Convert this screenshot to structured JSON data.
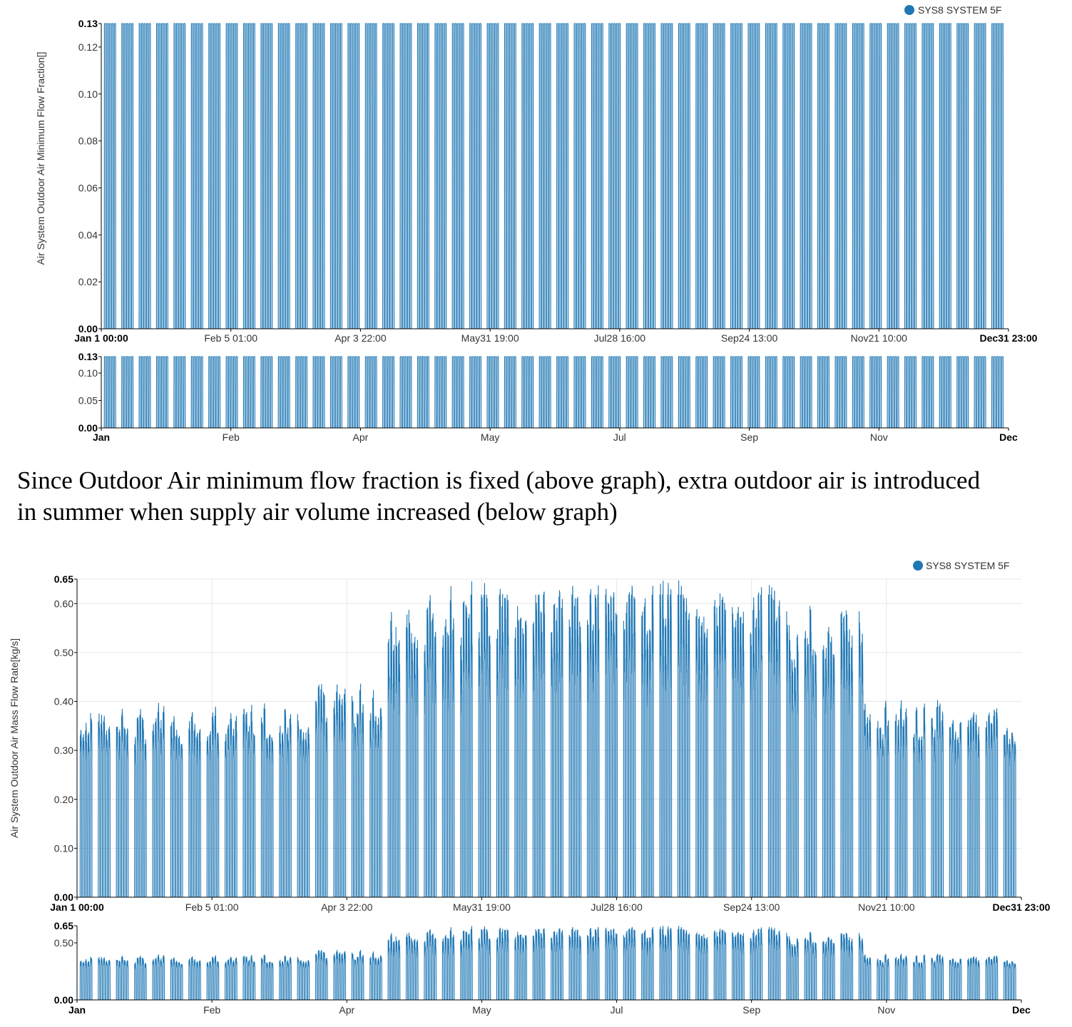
{
  "caption": {
    "line1": "Since Outdoor Air minimum flow fraction is fixed (above graph), extra outdoor air is introduced",
    "line2": "in summer when supply air volume increased (below graph)"
  },
  "colors": {
    "series": "#1f77b4",
    "grid": "#e6e6e6",
    "axis": "#000000"
  },
  "chart_data": [
    {
      "type": "line",
      "title": "",
      "ylabel": "Air System Outdoor Air Minimum Flow Fraction[]",
      "legend": [
        "SYS8 SYSTEM 5F"
      ],
      "legend_position": "top-right",
      "grid": false,
      "ylim": [
        0,
        0.13
      ],
      "yticks": [
        "0.00",
        "0.02",
        "0.04",
        "0.06",
        "0.08",
        "0.10",
        "0.12",
        "0.13"
      ],
      "xticks": [
        "Jan 1 00:00",
        "Feb 5 01:00",
        "Apr 3 22:00",
        "May31 19:00",
        "Jul28 16:00",
        "Sep24 13:00",
        "Nov21 10:00",
        "Dec31 23:00"
      ],
      "x_range": [
        "Jan 1 00:00",
        "Dec31 23:00"
      ],
      "series": [
        {
          "name": "SYS8 SYSTEM 5F",
          "pattern": "weekday occupied-hours pulses, weekends off",
          "weekday_value": 0.13,
          "off_value": 0.0
        }
      ],
      "navigator": {
        "ylim": [
          0,
          0.13
        ],
        "yticks": [
          "0.00",
          "0.05",
          "0.10",
          "0.13"
        ],
        "xticks": [
          "Jan",
          "Feb",
          "Apr",
          "May",
          "Jul",
          "Sep",
          "Nov",
          "Dec"
        ]
      }
    },
    {
      "type": "line",
      "title": "",
      "ylabel": "Air System Outdoor Air Mass Flow Rate[kg/s]",
      "legend": [
        "SYS8 SYSTEM 5F"
      ],
      "legend_position": "top-right",
      "grid": true,
      "ylim": [
        0,
        0.65
      ],
      "yticks": [
        "0.00",
        "0.10",
        "0.20",
        "0.30",
        "0.40",
        "0.50",
        "0.60",
        "0.65"
      ],
      "xticks": [
        "Jan 1 00:00",
        "Feb 5 01:00",
        "Apr 3 22:00",
        "May31 19:00",
        "Jul28 16:00",
        "Sep24 13:00",
        "Nov21 10:00",
        "Dec31 23:00"
      ],
      "x_range": [
        "Jan 1 00:00",
        "Dec31 23:00"
      ],
      "series": [
        {
          "name": "SYS8 SYSTEM 5F",
          "pattern": "weekday pulses; winter daily peaks ~0.37, summer peaks reaching 0.65",
          "baseline_occupied": 0.2,
          "off_value": 0.0,
          "monthly_typical_peak": {
            "Jan": 0.37,
            "Feb": 0.37,
            "Mar": 0.38,
            "Apr": 0.42,
            "May": 0.6,
            "Jun": 0.63,
            "Jul": 0.64,
            "Aug": 0.64,
            "Sep": 0.62,
            "Oct": 0.58,
            "Nov": 0.38,
            "Dec": 0.37
          }
        }
      ],
      "navigator": {
        "ylim": [
          0,
          0.65
        ],
        "yticks": [
          "0.00",
          "0.50",
          "0.65"
        ],
        "xticks": [
          "Jan",
          "Feb",
          "Apr",
          "May",
          "Jul",
          "Sep",
          "Nov",
          "Dec"
        ]
      }
    }
  ]
}
